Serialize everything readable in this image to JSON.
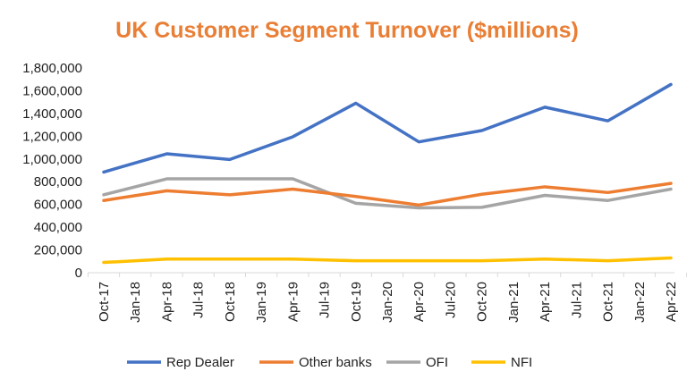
{
  "chart_data": {
    "type": "line",
    "title": "UK Customer Segment Turnover ($millions)",
    "xlabel": "",
    "ylabel": "",
    "ylim": [
      0,
      1800000
    ],
    "yticks": [
      0,
      200000,
      400000,
      600000,
      800000,
      1000000,
      1200000,
      1400000,
      1600000,
      1800000
    ],
    "ytick_labels": [
      "0",
      "200,000",
      "400,000",
      "600,000",
      "800,000",
      "1,000,000",
      "1,200,000",
      "1,400,000",
      "1,600,000",
      "1,800,000"
    ],
    "xtick_labels": [
      "Oct-17",
      "Jan-18",
      "Apr-18",
      "Jul-18",
      "Oct-18",
      "Jan-19",
      "Apr-19",
      "Jul-19",
      "Oct-19",
      "Jan-20",
      "Apr-20",
      "Jul-20",
      "Oct-20",
      "Jan-21",
      "Apr-21",
      "Jul-21",
      "Oct-21",
      "Jan-22",
      "Apr-22"
    ],
    "x": [
      "Oct-17",
      "Apr-18",
      "Oct-18",
      "Apr-19",
      "Oct-19",
      "Apr-20",
      "Oct-20",
      "Apr-21",
      "Oct-21",
      "Apr-22"
    ],
    "grid": false,
    "legend_position": "bottom",
    "series": [
      {
        "name": "Rep Dealer",
        "color": "#4472C4",
        "values": [
          885000,
          1045000,
          995000,
          1195000,
          1490000,
          1150000,
          1250000,
          1455000,
          1335000,
          1655000
        ]
      },
      {
        "name": "Other banks",
        "color": "#ED7D31",
        "values": [
          635000,
          720000,
          685000,
          735000,
          670000,
          595000,
          690000,
          755000,
          705000,
          785000
        ]
      },
      {
        "name": "OFI",
        "color": "#A5A5A5",
        "values": [
          685000,
          825000,
          825000,
          825000,
          610000,
          570000,
          575000,
          680000,
          635000,
          735000
        ]
      },
      {
        "name": "NFI",
        "color": "#FFC000",
        "values": [
          90000,
          120000,
          120000,
          120000,
          105000,
          105000,
          105000,
          120000,
          105000,
          130000
        ]
      }
    ]
  }
}
